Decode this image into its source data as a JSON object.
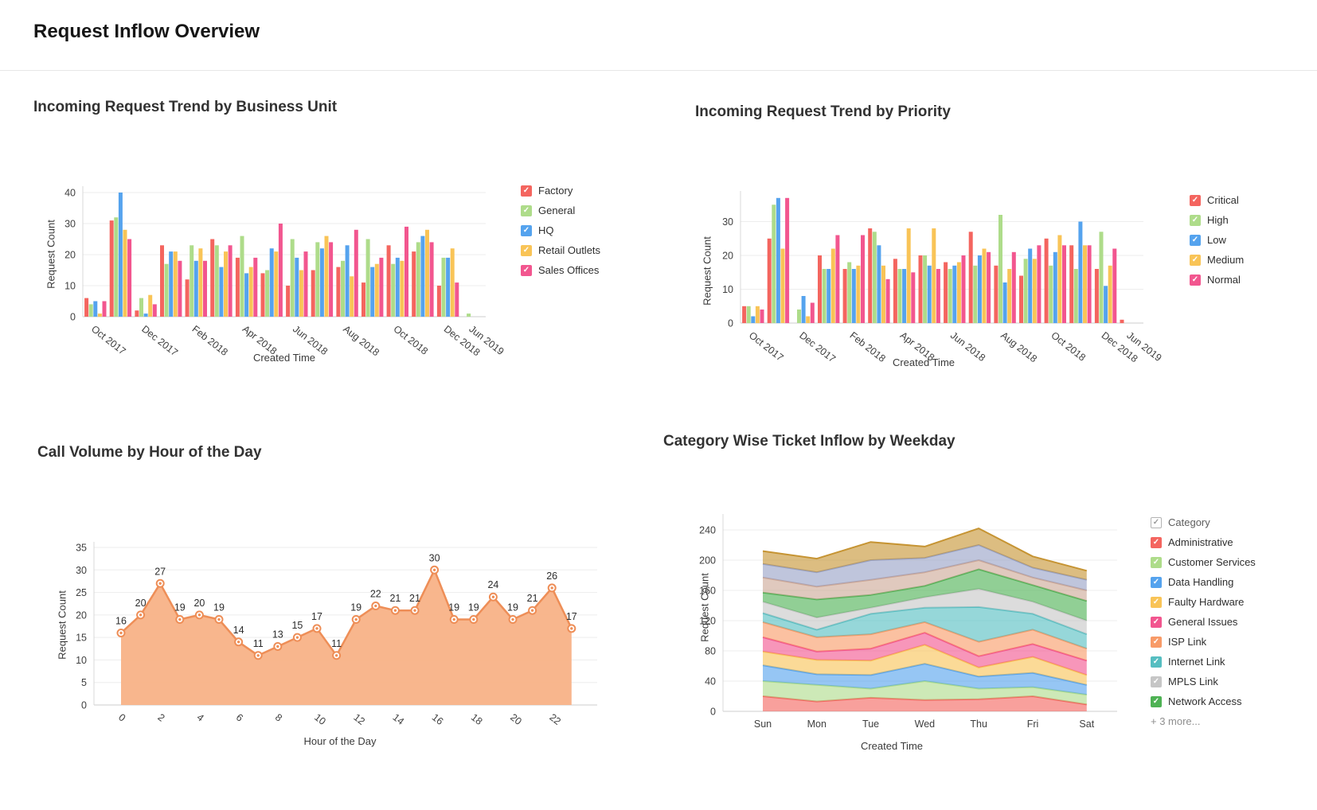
{
  "page": {
    "title": "Request Inflow Overview"
  },
  "chart_data": [
    {
      "type": "bar",
      "title": "Incoming Request Trend by Business Unit",
      "xlabel": "Created Time",
      "ylabel": "Request Count",
      "ylim": [
        0,
        40
      ],
      "yticks": [
        0,
        10,
        20,
        30,
        40
      ],
      "grid": true,
      "legend_position": "right",
      "categories": [
        "Oct 2017",
        "Nov 2017",
        "Dec 2017",
        "Jan 2018",
        "Feb 2018",
        "Mar 2018",
        "Apr 2018",
        "May 2018",
        "Jun 2018",
        "Jul 2018",
        "Aug 2018",
        "Sep 2018",
        "Oct 2018",
        "Nov 2018",
        "Dec 2018",
        "Jun 2019"
      ],
      "tick_labels": [
        "Oct 2017",
        "Dec 2017",
        "Feb 2018",
        "Apr 2018",
        "Jun 2018",
        "Aug 2018",
        "Oct 2018",
        "Dec 2018",
        "Jun 2019"
      ],
      "tick_indices": [
        0,
        2,
        4,
        6,
        8,
        10,
        12,
        14,
        15
      ],
      "series": [
        {
          "name": "Factory",
          "color": "#F4655F",
          "values": [
            6,
            31,
            2,
            23,
            12,
            25,
            19,
            14,
            10,
            15,
            16,
            11,
            23,
            21,
            10,
            0
          ]
        },
        {
          "name": "General",
          "color": "#AEDC8A",
          "values": [
            4,
            32,
            6,
            17,
            23,
            23,
            26,
            15,
            25,
            24,
            18,
            25,
            17,
            24,
            19,
            1
          ]
        },
        {
          "name": "HQ",
          "color": "#55A3EE",
          "values": [
            5,
            40,
            1,
            21,
            18,
            16,
            14,
            22,
            19,
            22,
            23,
            16,
            19,
            26,
            19,
            0
          ]
        },
        {
          "name": "Retail Outlets",
          "color": "#F9C457",
          "values": [
            1,
            28,
            7,
            21,
            22,
            21,
            16,
            21,
            15,
            26,
            13,
            17,
            18,
            28,
            22,
            0
          ]
        },
        {
          "name": "Sales Offices",
          "color": "#F2568F",
          "values": [
            5,
            25,
            4,
            18,
            18,
            23,
            19,
            30,
            21,
            24,
            28,
            19,
            29,
            24,
            11,
            0
          ]
        }
      ]
    },
    {
      "type": "bar",
      "title": "Incoming Request Trend by Priority",
      "xlabel": "Created Time",
      "ylabel": "Request Count",
      "ylim": [
        0,
        38
      ],
      "yticks": [
        0,
        10,
        20,
        30
      ],
      "grid": true,
      "legend_position": "right",
      "categories": [
        "Oct 2017",
        "Nov 2017",
        "Dec 2017",
        "Jan 2018",
        "Feb 2018",
        "Mar 2018",
        "Apr 2018",
        "May 2018",
        "Jun 2018",
        "Jul 2018",
        "Aug 2018",
        "Sep 2018",
        "Oct 2018",
        "Nov 2018",
        "Dec 2018",
        "Jun 2019"
      ],
      "tick_labels": [
        "Oct 2017",
        "Dec 2017",
        "Feb 2018",
        "Apr 2018",
        "Jun 2018",
        "Aug 2018",
        "Oct 2018",
        "Dec 2018",
        "Jun 2019"
      ],
      "tick_indices": [
        0,
        2,
        4,
        6,
        8,
        10,
        12,
        14,
        15
      ],
      "series": [
        {
          "name": "Critical",
          "color": "#F4655F",
          "values": [
            5,
            25,
            0,
            20,
            16,
            28,
            19,
            20,
            18,
            27,
            17,
            14,
            25,
            23,
            16,
            1
          ]
        },
        {
          "name": "High",
          "color": "#AEDC8A",
          "values": [
            5,
            35,
            4,
            16,
            18,
            27,
            16,
            20,
            16,
            17,
            32,
            19,
            17,
            16,
            27,
            0
          ]
        },
        {
          "name": "Low",
          "color": "#55A3EE",
          "values": [
            2,
            37,
            8,
            16,
            16,
            23,
            16,
            17,
            17,
            20,
            12,
            22,
            21,
            30,
            11,
            0
          ]
        },
        {
          "name": "Medium",
          "color": "#F9C457",
          "values": [
            5,
            22,
            2,
            22,
            17,
            17,
            28,
            28,
            18,
            22,
            16,
            19,
            26,
            23,
            17,
            0
          ]
        },
        {
          "name": "Normal",
          "color": "#F2568F",
          "values": [
            4,
            37,
            6,
            26,
            26,
            13,
            15,
            16,
            20,
            21,
            21,
            23,
            23,
            23,
            22,
            0
          ]
        }
      ]
    },
    {
      "type": "area",
      "title": "Call Volume by Hour of the Day",
      "xlabel": "Hour of the Day",
      "ylabel": "Request Count",
      "ylim": [
        0,
        35
      ],
      "yticks": [
        0,
        5,
        10,
        15,
        20,
        25,
        30,
        35
      ],
      "grid": true,
      "color": "#EE8E57",
      "fill": "#F8B287",
      "show_point_labels": true,
      "x": [
        0,
        1,
        2,
        3,
        4,
        5,
        6,
        7,
        8,
        9,
        10,
        11,
        12,
        13,
        14,
        15,
        16,
        17,
        18,
        19,
        20,
        21,
        22,
        23
      ],
      "tick_labels": [
        "0",
        "2",
        "4",
        "6",
        "8",
        "10",
        "12",
        "14",
        "16",
        "18",
        "20",
        "22"
      ],
      "tick_indices": [
        0,
        2,
        4,
        6,
        8,
        10,
        12,
        14,
        16,
        18,
        20,
        22
      ],
      "values": [
        16,
        20,
        27,
        19,
        20,
        19,
        14,
        11,
        13,
        15,
        17,
        11,
        19,
        22,
        21,
        21,
        30,
        19,
        19,
        24,
        19,
        21,
        26,
        17
      ]
    },
    {
      "type": "area",
      "stacked": true,
      "title": "Category Wise Ticket Inflow by Weekday",
      "xlabel": "Created Time",
      "ylabel": "Request Count",
      "ylim": [
        0,
        240
      ],
      "yticks": [
        0,
        40,
        80,
        120,
        160,
        200,
        240
      ],
      "grid": true,
      "legend_position": "right",
      "legend_header": "Category",
      "legend_more": "+ 3 more...",
      "legend_visible_count": 9,
      "categories": [
        "Sun",
        "Mon",
        "Tue",
        "Wed",
        "Thu",
        "Fri",
        "Sat"
      ],
      "series": [
        {
          "name": "Administrative",
          "color": "#F4655F",
          "values": [
            20,
            13,
            18,
            15,
            16,
            20,
            9
          ]
        },
        {
          "name": "Customer Services",
          "color": "#AEDC8A",
          "values": [
            20,
            22,
            12,
            25,
            14,
            12,
            13
          ]
        },
        {
          "name": "Data Handling",
          "color": "#55A3EE",
          "values": [
            21,
            14,
            18,
            23,
            16,
            19,
            13
          ]
        },
        {
          "name": "Faulty Hardware",
          "color": "#F9C457",
          "values": [
            18,
            19,
            19,
            25,
            12,
            21,
            13
          ]
        },
        {
          "name": "General Issues",
          "color": "#F2568F",
          "values": [
            19,
            11,
            16,
            16,
            15,
            17,
            19
          ]
        },
        {
          "name": "ISP Link",
          "color": "#F89B68",
          "values": [
            20,
            19,
            19,
            14,
            19,
            19,
            16
          ]
        },
        {
          "name": "Internet Link",
          "color": "#56BEC1",
          "values": [
            12,
            10,
            27,
            19,
            46,
            21,
            19
          ]
        },
        {
          "name": "MPLS Link",
          "color": "#C6C6C6",
          "values": [
            15,
            16,
            8,
            14,
            24,
            16,
            18
          ]
        },
        {
          "name": "Network Access",
          "color": "#4EB254",
          "values": [
            12,
            24,
            17,
            15,
            26,
            22,
            26
          ]
        },
        {
          "name": "",
          "color": "#CDA896",
          "values": [
            20,
            17,
            20,
            18,
            12,
            10,
            14
          ]
        },
        {
          "name": "",
          "color": "#98A2C6",
          "values": [
            18,
            19,
            26,
            19,
            20,
            13,
            14
          ]
        },
        {
          "name": "",
          "color": "#C69433",
          "values": [
            17,
            18,
            24,
            15,
            22,
            15,
            12
          ]
        }
      ]
    }
  ]
}
